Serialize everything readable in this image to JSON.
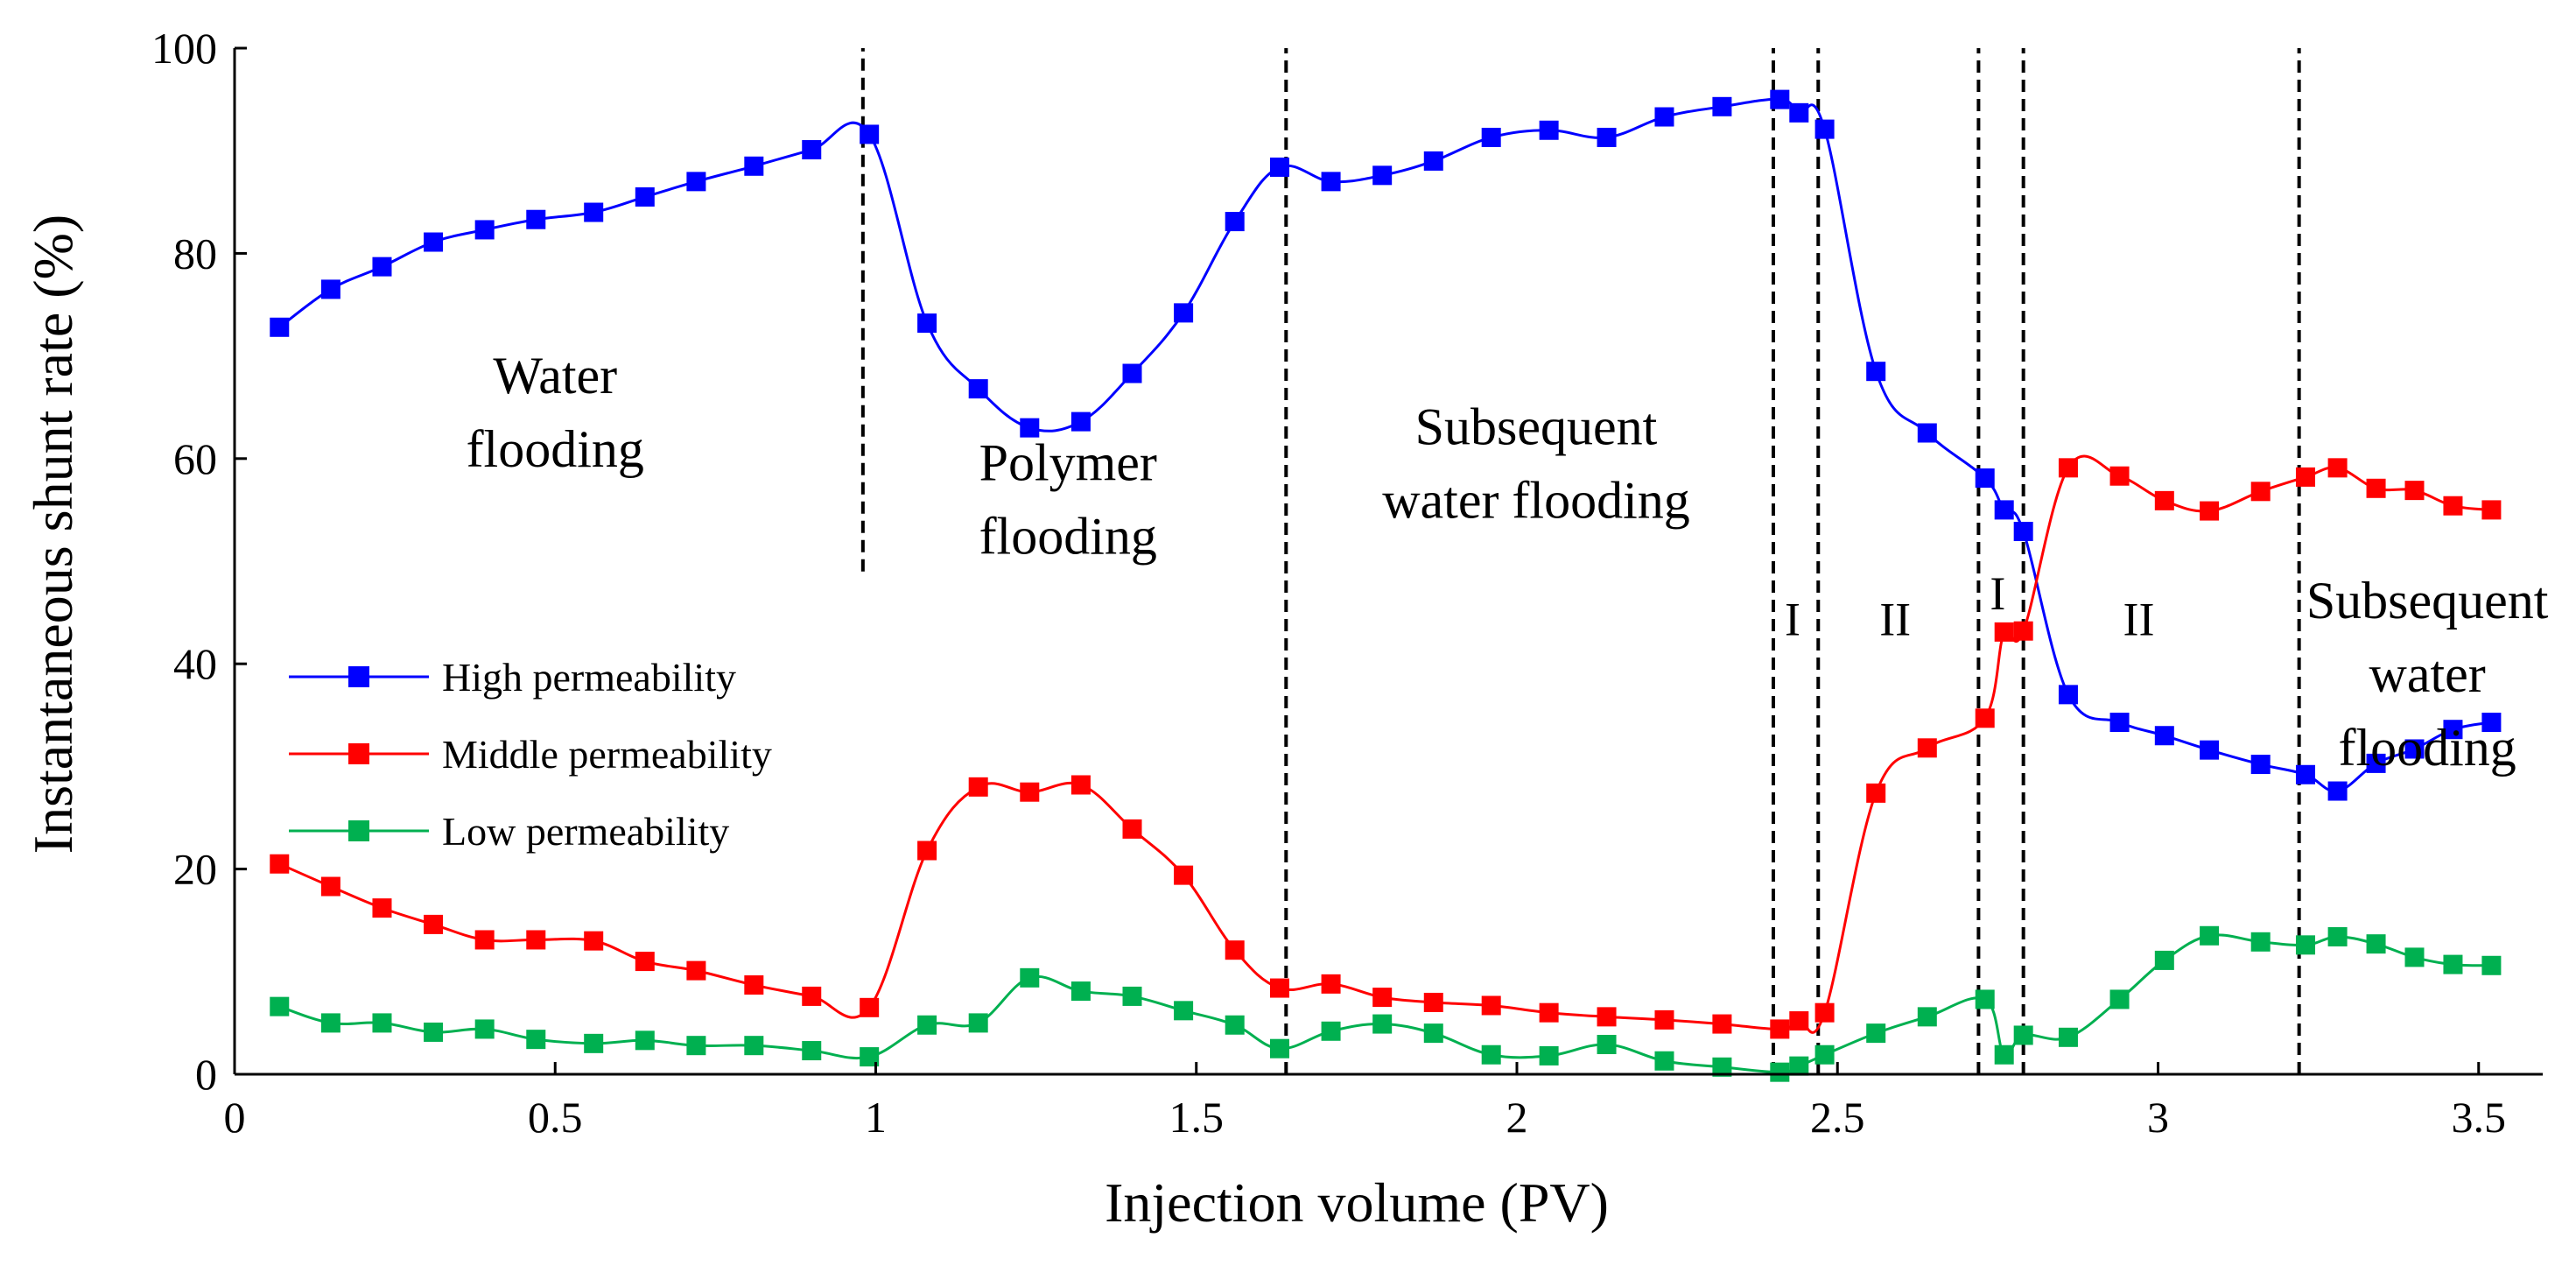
{
  "chart_data": {
    "type": "line",
    "title": "",
    "xlabel": "Injection volume (PV)",
    "ylabel": "Instantaneous shunt rate (%)",
    "xlim": [
      0,
      3.6
    ],
    "ylim": [
      0,
      100
    ],
    "xticks": [
      0,
      0.5,
      1,
      1.5,
      2,
      2.5,
      3,
      3.5
    ],
    "xtick_labels": [
      "0",
      "0.5",
      "1",
      "1.5",
      "2",
      "2.5",
      "3",
      "3.5"
    ],
    "yticks": [
      0,
      20,
      40,
      60,
      80,
      100
    ],
    "ytick_labels": [
      "0",
      "20",
      "40",
      "60",
      "80",
      "100"
    ],
    "legend_position": "lower-left",
    "series": [
      {
        "name": "High permeability",
        "color": "#0000ff",
        "points": [
          [
            0.07,
            72.8
          ],
          [
            0.15,
            76.5
          ],
          [
            0.23,
            78.7
          ],
          [
            0.31,
            81.1
          ],
          [
            0.39,
            82.3
          ],
          [
            0.47,
            83.3
          ],
          [
            0.56,
            84.0
          ],
          [
            0.64,
            85.5
          ],
          [
            0.72,
            87.0
          ],
          [
            0.81,
            88.5
          ],
          [
            0.9,
            90.1
          ],
          [
            0.99,
            91.6
          ],
          [
            1.08,
            73.2
          ],
          [
            1.16,
            66.8
          ],
          [
            1.24,
            63.0
          ],
          [
            1.32,
            63.6
          ],
          [
            1.4,
            68.3
          ],
          [
            1.48,
            74.2
          ],
          [
            1.56,
            83.1
          ],
          [
            1.63,
            88.4
          ],
          [
            1.71,
            87.0
          ],
          [
            1.79,
            87.6
          ],
          [
            1.87,
            89.0
          ],
          [
            1.96,
            91.3
          ],
          [
            2.05,
            92.0
          ],
          [
            2.14,
            91.3
          ],
          [
            2.23,
            93.3
          ],
          [
            2.32,
            94.3
          ],
          [
            2.41,
            95.0
          ],
          [
            2.44,
            93.7
          ],
          [
            2.48,
            92.1
          ],
          [
            2.56,
            68.5
          ],
          [
            2.64,
            62.5
          ],
          [
            2.73,
            58.1
          ],
          [
            2.76,
            55.0
          ],
          [
            2.79,
            52.9
          ],
          [
            2.86,
            37.0
          ],
          [
            2.94,
            34.3
          ],
          [
            3.01,
            33.0
          ],
          [
            3.08,
            31.6
          ],
          [
            3.16,
            30.2
          ],
          [
            3.23,
            29.2
          ],
          [
            3.28,
            27.6
          ],
          [
            3.34,
            30.3
          ],
          [
            3.4,
            31.7
          ],
          [
            3.46,
            33.6
          ],
          [
            3.52,
            34.3
          ]
        ]
      },
      {
        "name": "Middle permeability",
        "color": "#ff0000",
        "points": [
          [
            0.07,
            20.5
          ],
          [
            0.15,
            18.3
          ],
          [
            0.23,
            16.2
          ],
          [
            0.31,
            14.6
          ],
          [
            0.39,
            13.1
          ],
          [
            0.47,
            13.1
          ],
          [
            0.56,
            13.0
          ],
          [
            0.64,
            11.0
          ],
          [
            0.72,
            10.1
          ],
          [
            0.81,
            8.7
          ],
          [
            0.9,
            7.6
          ],
          [
            0.99,
            6.5
          ],
          [
            1.08,
            21.8
          ],
          [
            1.16,
            28.0
          ],
          [
            1.24,
            27.5
          ],
          [
            1.32,
            28.2
          ],
          [
            1.4,
            23.9
          ],
          [
            1.48,
            19.4
          ],
          [
            1.56,
            12.1
          ],
          [
            1.63,
            8.4
          ],
          [
            1.71,
            8.8
          ],
          [
            1.79,
            7.5
          ],
          [
            1.87,
            7.0
          ],
          [
            1.96,
            6.7
          ],
          [
            2.05,
            6.0
          ],
          [
            2.14,
            5.6
          ],
          [
            2.23,
            5.3
          ],
          [
            2.32,
            4.9
          ],
          [
            2.41,
            4.4
          ],
          [
            2.44,
            5.2
          ],
          [
            2.48,
            6.0
          ],
          [
            2.56,
            27.4
          ],
          [
            2.64,
            31.8
          ],
          [
            2.73,
            34.7
          ],
          [
            2.76,
            43.1
          ],
          [
            2.79,
            43.2
          ],
          [
            2.86,
            59.1
          ],
          [
            2.94,
            58.3
          ],
          [
            3.01,
            55.9
          ],
          [
            3.08,
            54.9
          ],
          [
            3.16,
            56.8
          ],
          [
            3.23,
            58.2
          ],
          [
            3.28,
            59.1
          ],
          [
            3.34,
            57.1
          ],
          [
            3.4,
            56.9
          ],
          [
            3.46,
            55.4
          ],
          [
            3.52,
            55.0
          ]
        ]
      },
      {
        "name": "Low permeability",
        "color": "#00b050",
        "points": [
          [
            0.07,
            6.6
          ],
          [
            0.15,
            5.0
          ],
          [
            0.23,
            5.0
          ],
          [
            0.31,
            4.1
          ],
          [
            0.39,
            4.4
          ],
          [
            0.47,
            3.4
          ],
          [
            0.56,
            3.0
          ],
          [
            0.64,
            3.3
          ],
          [
            0.72,
            2.8
          ],
          [
            0.81,
            2.8
          ],
          [
            0.9,
            2.3
          ],
          [
            0.99,
            1.7
          ],
          [
            1.08,
            4.8
          ],
          [
            1.16,
            5.0
          ],
          [
            1.24,
            9.4
          ],
          [
            1.32,
            8.1
          ],
          [
            1.4,
            7.6
          ],
          [
            1.48,
            6.2
          ],
          [
            1.56,
            4.8
          ],
          [
            1.63,
            2.5
          ],
          [
            1.71,
            4.2
          ],
          [
            1.79,
            4.9
          ],
          [
            1.87,
            4.0
          ],
          [
            1.96,
            1.9
          ],
          [
            2.05,
            1.8
          ],
          [
            2.14,
            2.9
          ],
          [
            2.23,
            1.3
          ],
          [
            2.32,
            0.7
          ],
          [
            2.41,
            0.2
          ],
          [
            2.44,
            0.8
          ],
          [
            2.48,
            1.9
          ],
          [
            2.56,
            4.0
          ],
          [
            2.64,
            5.6
          ],
          [
            2.73,
            7.3
          ],
          [
            2.76,
            1.9
          ],
          [
            2.79,
            3.8
          ],
          [
            2.86,
            3.6
          ],
          [
            2.94,
            7.3
          ],
          [
            3.01,
            11.1
          ],
          [
            3.08,
            13.5
          ],
          [
            3.16,
            12.9
          ],
          [
            3.23,
            12.6
          ],
          [
            3.28,
            13.4
          ],
          [
            3.34,
            12.7
          ],
          [
            3.4,
            11.4
          ],
          [
            3.46,
            10.7
          ],
          [
            3.52,
            10.6
          ]
        ]
      }
    ],
    "divider_lines": [
      {
        "x": 0.98,
        "y_from": 49,
        "y_to": 100
      },
      {
        "x": 1.64,
        "y_from": 0,
        "y_to": 100
      },
      {
        "x": 2.4,
        "y_from": 0,
        "y_to": 100
      },
      {
        "x": 2.47,
        "y_from": 0,
        "y_to": 100
      },
      {
        "x": 2.72,
        "y_from": 0,
        "y_to": 100
      },
      {
        "x": 2.79,
        "y_from": 0,
        "y_to": 100
      },
      {
        "x": 3.22,
        "y_from": 0,
        "y_to": 100
      }
    ],
    "annotations": [
      {
        "lines": [
          "Water",
          "flooding"
        ],
        "x": 0.5,
        "y": 64.5
      },
      {
        "lines": [
          "Polymer",
          "flooding"
        ],
        "x": 1.3,
        "y": 56.0
      },
      {
        "lines": [
          "Subsequent",
          "water flooding"
        ],
        "x": 2.03,
        "y": 59.5
      },
      {
        "lines": [
          "I"
        ],
        "x": 2.43,
        "y": 44.5
      },
      {
        "lines": [
          "II"
        ],
        "x": 2.59,
        "y": 44.5
      },
      {
        "lines": [
          "I"
        ],
        "x": 2.75,
        "y": 47.0
      },
      {
        "lines": [
          "II"
        ],
        "x": 2.97,
        "y": 44.5
      },
      {
        "lines": [
          "Subsequent",
          "water",
          "flooding"
        ],
        "x": 3.42,
        "y": 39.0
      }
    ]
  }
}
